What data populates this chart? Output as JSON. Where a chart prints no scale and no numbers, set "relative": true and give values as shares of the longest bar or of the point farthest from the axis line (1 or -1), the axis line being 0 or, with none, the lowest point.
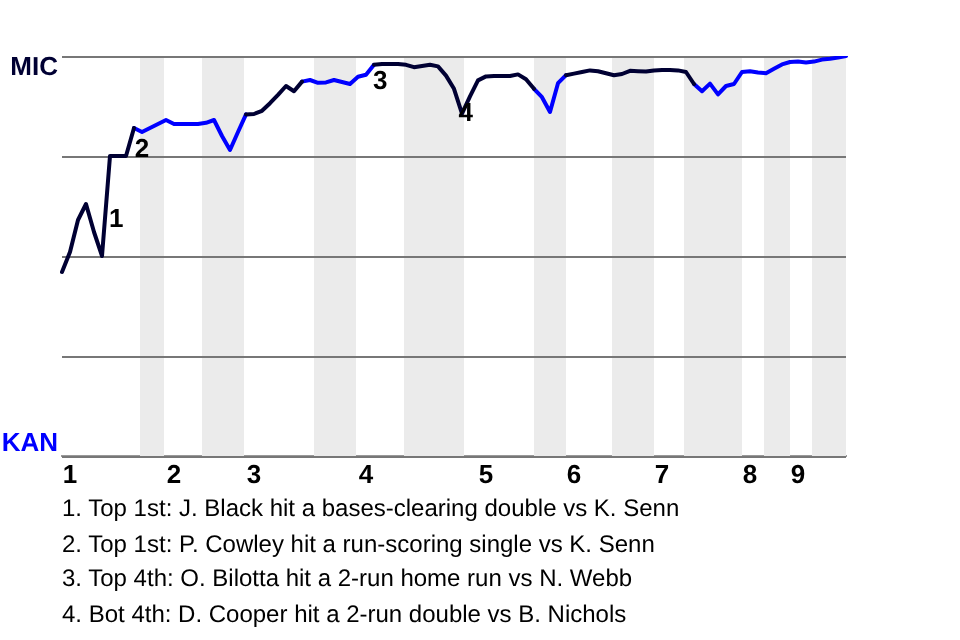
{
  "chart_data": {
    "type": "line",
    "relative": true,
    "categories": [
      null,
      "1",
      null,
      null,
      null,
      null,
      null,
      null,
      null,
      null,
      null,
      null,
      null,
      null,
      "2",
      null,
      null,
      null,
      null,
      null,
      null,
      null,
      null,
      null,
      "3",
      null,
      null,
      null,
      null,
      null,
      null,
      null,
      null,
      null,
      null,
      null,
      null,
      null,
      "4",
      null,
      null,
      null,
      null,
      null,
      null,
      null,
      null,
      null,
      null,
      null,
      null,
      null,
      null,
      "5",
      null,
      null,
      null,
      null,
      null,
      null,
      null,
      null,
      null,
      null,
      "6",
      null,
      null,
      null,
      null,
      null,
      null,
      null,
      null,
      null,
      null,
      "7",
      null,
      null,
      null,
      null,
      null,
      null,
      null,
      null,
      null,
      null,
      "8",
      null,
      null,
      null,
      null,
      null,
      "9",
      null,
      null,
      null,
      null,
      null,
      null
    ],
    "series": [
      {
        "color": "#000033",
        "values": [
          0.46,
          0.51,
          0.59,
          0.63,
          0.56,
          0.5,
          0.75,
          0.75,
          0.75,
          0.82,
          null,
          null,
          null,
          null,
          null,
          null,
          null,
          null,
          null,
          null,
          null,
          null,
          null,
          0.854,
          0.855,
          0.863,
          0.882,
          0.903,
          0.925,
          0.912,
          0.936,
          null,
          null,
          null,
          null,
          null,
          null,
          null,
          null,
          0.978,
          0.98,
          0.98,
          0.98,
          0.978,
          0.972,
          0.975,
          0.978,
          0.974,
          0.951,
          0.918,
          0.856,
          0.899,
          0.939,
          0.949,
          0.95,
          0.95,
          0.95,
          0.954,
          0.942,
          0.918,
          null,
          null,
          null,
          0.952,
          0.956,
          0.96,
          0.964,
          0.962,
          0.957,
          0.952,
          0.955,
          0.963,
          0.962,
          0.961,
          0.964,
          0.965,
          0.965,
          0.964,
          0.96,
          0.93,
          null,
          null,
          null,
          null,
          null,
          null,
          null,
          null,
          null,
          null,
          null,
          null,
          null,
          null,
          null,
          null,
          null,
          null,
          null
        ]
      },
      {
        "color": "#0000ff",
        "values": [
          null,
          null,
          null,
          null,
          null,
          null,
          null,
          null,
          null,
          0.82,
          0.81,
          0.82,
          0.83,
          0.84,
          0.83,
          0.83,
          0.83,
          0.83,
          0.833,
          0.84,
          0.8,
          0.765,
          0.81,
          0.854,
          null,
          null,
          null,
          null,
          null,
          null,
          0.936,
          0.94,
          0.933,
          0.934,
          0.94,
          0.935,
          0.93,
          0.948,
          0.953,
          0.978,
          null,
          null,
          null,
          null,
          null,
          null,
          null,
          null,
          null,
          null,
          null,
          null,
          null,
          null,
          null,
          null,
          null,
          null,
          null,
          0.918,
          0.897,
          0.86,
          0.932,
          0.952,
          null,
          null,
          null,
          null,
          null,
          null,
          null,
          null,
          null,
          null,
          null,
          null,
          null,
          null,
          null,
          0.93,
          0.912,
          0.931,
          0.904,
          0.925,
          0.93,
          0.96,
          0.962,
          0.959,
          0.957,
          0.968,
          0.979,
          0.985,
          0.986,
          0.984,
          0.986,
          0.991,
          0.993,
          0.996,
          1
        ]
      }
    ],
    "grid": "y",
    "marker": "none",
    "annotations": [
      "MIC",
      "KAN",
      "1",
      "2",
      "3",
      "4",
      "1. Top 1st: J. Black hit a bases-clearing double vs K. Senn",
      "2. Top 1st: P. Cowley hit a run-scoring single vs K. Senn",
      "3. Top 4th: O. Bilotta hit a 2-run home run vs N. Webb",
      "4. Bot 4th: D. Cooper hit a 2-run double vs B. Nichols"
    ]
  }
}
